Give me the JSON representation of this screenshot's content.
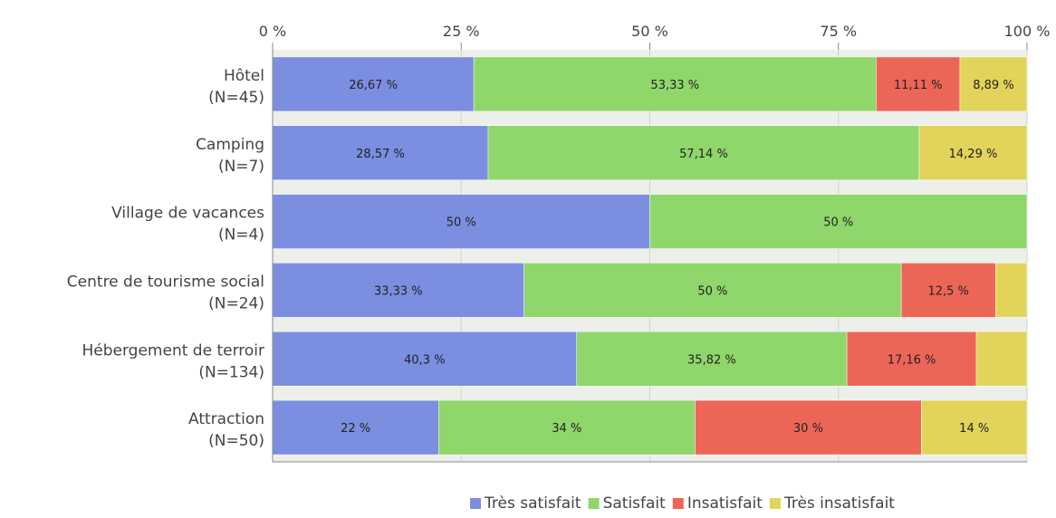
{
  "chart_data": {
    "type": "bar",
    "orientation": "horizontal",
    "stacked": "percent",
    "categories": [
      [
        "Hôtel",
        "(N=45)"
      ],
      [
        "Camping",
        "(N=7)"
      ],
      [
        "Village de vacances",
        "(N=4)"
      ],
      [
        "Centre de tourisme social",
        "(N=24)"
      ],
      [
        "Hébergement de terroir",
        "(N=134)"
      ],
      [
        "Attraction",
        "(N=50)"
      ]
    ],
    "series": [
      {
        "name": "Très satisfait",
        "color": "#7b8ee0",
        "values": [
          26.67,
          28.57,
          50,
          33.33,
          40.3,
          22
        ],
        "labels": [
          "26,67 %",
          "28,57 %",
          "50 %",
          "33,33 %",
          "40,3 %",
          "22 %"
        ]
      },
      {
        "name": "Satisfait",
        "color": "#8fd66b",
        "values": [
          53.33,
          57.14,
          50,
          50,
          35.82,
          34
        ],
        "labels": [
          "53,33 %",
          "57,14 %",
          "50 %",
          "50 %",
          "35,82 %",
          "34 %"
        ]
      },
      {
        "name": "Insatisfait",
        "color": "#ec6657",
        "values": [
          11.11,
          0,
          0,
          12.5,
          17.16,
          30
        ],
        "labels": [
          "11,11 %",
          "",
          "",
          "12,5 %",
          "17,16 %",
          "30 %"
        ]
      },
      {
        "name": "Très insatisfait",
        "color": "#e2d35a",
        "values": [
          8.89,
          14.29,
          0,
          4.17,
          6.72,
          14
        ],
        "labels": [
          "8,89 %",
          "14,29 %",
          "",
          "",
          "",
          "14 %"
        ]
      }
    ],
    "xticks": [
      0,
      25,
      50,
      75,
      100
    ],
    "xtick_labels": [
      "0 %",
      "25 %",
      "50 %",
      "75 %",
      "100 %"
    ],
    "xlim": [
      0,
      100
    ],
    "grid": true,
    "legend_position": "bottom",
    "title": "",
    "xlabel": "",
    "ylabel": ""
  }
}
